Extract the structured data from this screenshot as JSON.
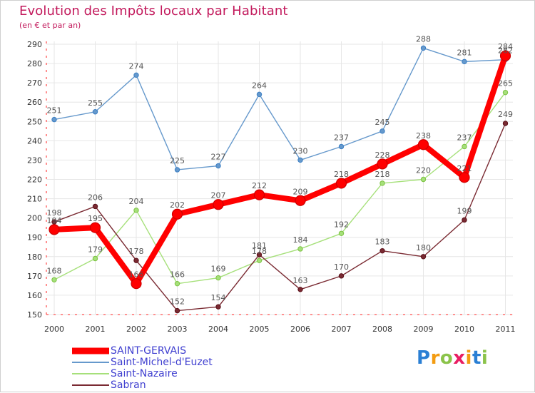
{
  "title": "Evolution des Impôts locaux par Habitant",
  "subtitle": "(en € et par an)",
  "brand": {
    "text": "Proxiti",
    "letters": [
      {
        "ch": "P",
        "color": "#2a7fd4"
      },
      {
        "ch": "r",
        "color": "#f39c12"
      },
      {
        "ch": "o",
        "color": "#8bc34a"
      },
      {
        "ch": "x",
        "color": "#e91e63"
      },
      {
        "ch": "i",
        "color": "#f39c12"
      },
      {
        "ch": "t",
        "color": "#2a7fd4"
      },
      {
        "ch": "i",
        "color": "#8bc34a"
      }
    ]
  },
  "chart_data": {
    "type": "line",
    "title": "Evolution des Impôts locaux par Habitant",
    "subtitle": "(en € et par an)",
    "xlabel": "",
    "ylabel": "",
    "ylim": [
      150,
      290
    ],
    "yticks": [
      150,
      160,
      170,
      180,
      190,
      200,
      210,
      220,
      230,
      240,
      250,
      260,
      270,
      280,
      290
    ],
    "grid": true,
    "legend_position": "bottom-left",
    "categories": [
      "2000",
      "2001",
      "2002",
      "2003",
      "2004",
      "2005",
      "2006",
      "2007",
      "2008",
      "2009",
      "2010",
      "2011"
    ],
    "series": [
      {
        "name": "SAINT-GERVAIS",
        "color": "#ff0000",
        "marker": "#dd0000",
        "width": "bold",
        "values": [
          194,
          195,
          166,
          202,
          207,
          212,
          209,
          218,
          228,
          238,
          221,
          284
        ],
        "labels": [
          "194",
          "195",
          "166",
          "202",
          "207",
          "212",
          "209",
          "218",
          "228",
          "238",
          "221",
          "284"
        ]
      },
      {
        "name": "Saint-Michel-d'Euzet",
        "color": "#6699cc",
        "marker": "#3b7fc4",
        "width": "thin",
        "values": [
          251,
          255,
          274,
          225,
          227,
          264,
          230,
          237,
          245,
          288,
          281,
          282
        ],
        "labels": [
          "251",
          "255",
          "274",
          "225",
          "227",
          "264",
          "230",
          "237",
          "245",
          "288",
          "281",
          "282"
        ]
      },
      {
        "name": "Saint-Nazaire",
        "color": "#a6e07a",
        "marker": "#7bc242",
        "width": "thin",
        "values": [
          168,
          179,
          204,
          166,
          169,
          178,
          184,
          192,
          218,
          220,
          237,
          265
        ],
        "labels": [
          "168",
          "179",
          "204",
          "166",
          "169",
          "178",
          "184",
          "192",
          "218",
          "220",
          "237",
          "265"
        ]
      },
      {
        "name": "Sabran",
        "color": "#7a2a32",
        "marker": "#5a1018",
        "width": "thin",
        "values": [
          198,
          206,
          178,
          152,
          154,
          181,
          163,
          170,
          183,
          180,
          199,
          249
        ],
        "labels": [
          "198",
          "206",
          "178",
          "152",
          "154",
          "181",
          "163",
          "170",
          "183",
          "180",
          "199",
          "249"
        ]
      }
    ]
  }
}
